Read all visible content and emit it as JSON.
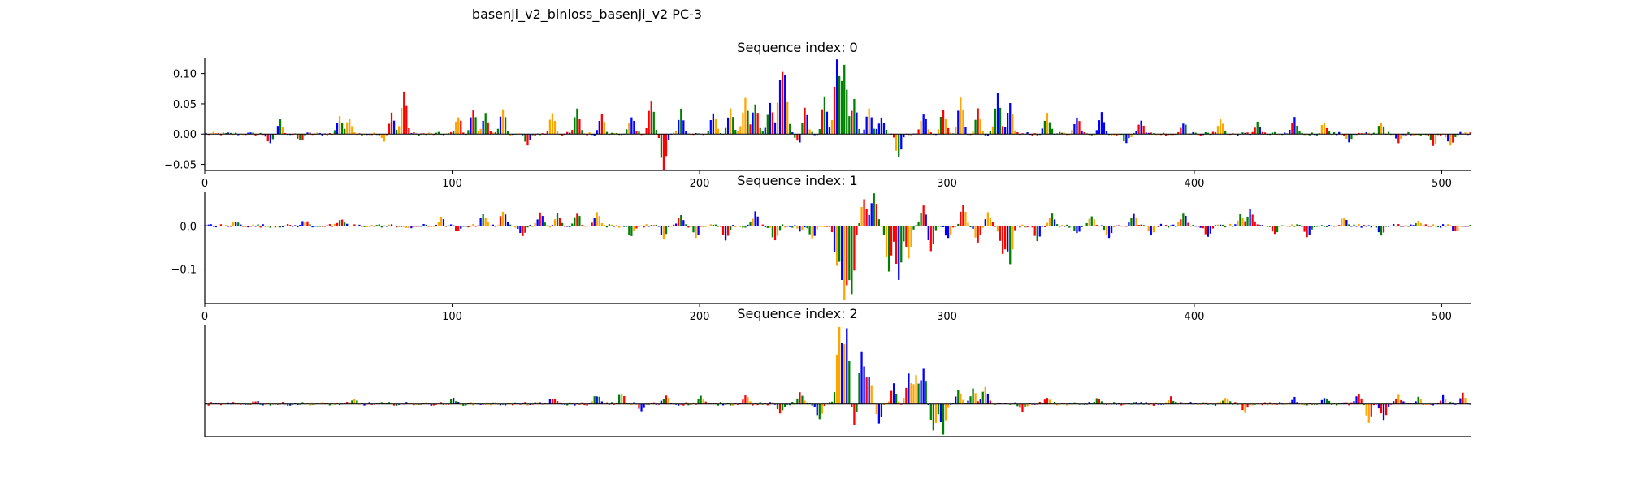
{
  "figure_title": "basenji_v2_binloss_basenji_v2 PC-3",
  "colors": {
    "A": "#008000",
    "C": "#0000ff",
    "G": "#ffa500",
    "T": "#ff0000"
  },
  "chart_data": [
    {
      "type": "sequence-logo",
      "title": "Sequence index: 0",
      "xlim": [
        0,
        512
      ],
      "ylim": [
        -0.06,
        0.125
      ],
      "x_ticks": [
        "0",
        "100",
        "200",
        "300",
        "400",
        "500"
      ],
      "y_ticks": [
        "0.10",
        "0.05",
        "0.00",
        "−0.05"
      ],
      "y_tick_values": [
        0.1,
        0.05,
        0.0,
        -0.05
      ],
      "peaks": [
        {
          "x": 26,
          "v": -0.018
        },
        {
          "x": 30,
          "v": 0.022
        },
        {
          "x": 38,
          "v": -0.012
        },
        {
          "x": 54,
          "v": 0.03
        },
        {
          "x": 58,
          "v": 0.025
        },
        {
          "x": 72,
          "v": -0.014
        },
        {
          "x": 75,
          "v": 0.035
        },
        {
          "x": 80,
          "v": 0.07
        },
        {
          "x": 102,
          "v": 0.03
        },
        {
          "x": 108,
          "v": 0.04
        },
        {
          "x": 113,
          "v": 0.035
        },
        {
          "x": 120,
          "v": 0.04
        },
        {
          "x": 130,
          "v": -0.02
        },
        {
          "x": 140,
          "v": 0.035
        },
        {
          "x": 150,
          "v": 0.04
        },
        {
          "x": 160,
          "v": 0.035
        },
        {
          "x": 172,
          "v": 0.03
        },
        {
          "x": 180,
          "v": 0.055
        },
        {
          "x": 185,
          "v": -0.06
        },
        {
          "x": 192,
          "v": 0.04
        },
        {
          "x": 205,
          "v": 0.035
        },
        {
          "x": 212,
          "v": 0.045
        },
        {
          "x": 218,
          "v": 0.06
        },
        {
          "x": 222,
          "v": 0.05
        },
        {
          "x": 228,
          "v": 0.05
        },
        {
          "x": 232,
          "v": 0.075
        },
        {
          "x": 234,
          "v": 0.085
        },
        {
          "x": 240,
          "v": -0.02
        },
        {
          "x": 242,
          "v": 0.045
        },
        {
          "x": 250,
          "v": 0.06
        },
        {
          "x": 255,
          "v": 0.12
        },
        {
          "x": 258,
          "v": 0.11
        },
        {
          "x": 262,
          "v": 0.06
        },
        {
          "x": 268,
          "v": 0.045
        },
        {
          "x": 273,
          "v": 0.03
        },
        {
          "x": 280,
          "v": -0.04
        },
        {
          "x": 290,
          "v": 0.035
        },
        {
          "x": 298,
          "v": 0.04
        },
        {
          "x": 305,
          "v": 0.06
        },
        {
          "x": 312,
          "v": 0.04
        },
        {
          "x": 320,
          "v": 0.065
        },
        {
          "x": 325,
          "v": 0.05
        },
        {
          "x": 340,
          "v": 0.035
        },
        {
          "x": 352,
          "v": 0.03
        },
        {
          "x": 362,
          "v": 0.035
        },
        {
          "x": 372,
          "v": -0.015
        },
        {
          "x": 378,
          "v": 0.025
        },
        {
          "x": 395,
          "v": 0.02
        },
        {
          "x": 410,
          "v": 0.025
        },
        {
          "x": 425,
          "v": 0.02
        },
        {
          "x": 440,
          "v": 0.025
        },
        {
          "x": 452,
          "v": 0.02
        },
        {
          "x": 462,
          "v": -0.012
        },
        {
          "x": 475,
          "v": 0.02
        },
        {
          "x": 482,
          "v": -0.015
        },
        {
          "x": 496,
          "v": -0.02
        },
        {
          "x": 503,
          "v": -0.018
        }
      ]
    },
    {
      "type": "sequence-logo",
      "title": "Sequence index: 1",
      "xlim": [
        0,
        512
      ],
      "ylim": [
        -0.18,
        0.08
      ],
      "x_ticks": [
        "0",
        "100",
        "200",
        "300",
        "400",
        "500"
      ],
      "y_ticks": [
        "0.0",
        "−0.1"
      ],
      "y_tick_values": [
        0.0,
        -0.1
      ],
      "peaks": [
        {
          "x": 12,
          "v": 0.01
        },
        {
          "x": 40,
          "v": 0.012
        },
        {
          "x": 55,
          "v": 0.015
        },
        {
          "x": 82,
          "v": -0.01
        },
        {
          "x": 95,
          "v": 0.018
        },
        {
          "x": 102,
          "v": -0.015
        },
        {
          "x": 112,
          "v": 0.03
        },
        {
          "x": 120,
          "v": 0.035
        },
        {
          "x": 128,
          "v": -0.02
        },
        {
          "x": 135,
          "v": 0.03
        },
        {
          "x": 142,
          "v": 0.025
        },
        {
          "x": 150,
          "v": 0.03
        },
        {
          "x": 158,
          "v": 0.035
        },
        {
          "x": 172,
          "v": -0.025
        },
        {
          "x": 185,
          "v": -0.03
        },
        {
          "x": 192,
          "v": 0.025
        },
        {
          "x": 198,
          "v": -0.03
        },
        {
          "x": 210,
          "v": -0.03
        },
        {
          "x": 222,
          "v": 0.03
        },
        {
          "x": 230,
          "v": -0.035
        },
        {
          "x": 240,
          "v": -0.015
        },
        {
          "x": 245,
          "v": -0.03
        },
        {
          "x": 255,
          "v": -0.09
        },
        {
          "x": 258,
          "v": -0.17
        },
        {
          "x": 261,
          "v": -0.16
        },
        {
          "x": 266,
          "v": 0.065
        },
        {
          "x": 270,
          "v": 0.075
        },
        {
          "x": 276,
          "v": -0.11
        },
        {
          "x": 280,
          "v": -0.13
        },
        {
          "x": 284,
          "v": -0.08
        },
        {
          "x": 290,
          "v": 0.05
        },
        {
          "x": 293,
          "v": -0.06
        },
        {
          "x": 300,
          "v": -0.03
        },
        {
          "x": 306,
          "v": 0.05
        },
        {
          "x": 312,
          "v": -0.04
        },
        {
          "x": 316,
          "v": 0.03
        },
        {
          "x": 322,
          "v": -0.06
        },
        {
          "x": 325,
          "v": -0.085
        },
        {
          "x": 336,
          "v": -0.035
        },
        {
          "x": 342,
          "v": 0.025
        },
        {
          "x": 352,
          "v": -0.02
        },
        {
          "x": 358,
          "v": 0.02
        },
        {
          "x": 365,
          "v": -0.03
        },
        {
          "x": 375,
          "v": 0.025
        },
        {
          "x": 382,
          "v": -0.02
        },
        {
          "x": 395,
          "v": 0.03
        },
        {
          "x": 405,
          "v": -0.025
        },
        {
          "x": 418,
          "v": 0.025
        },
        {
          "x": 422,
          "v": 0.035
        },
        {
          "x": 432,
          "v": -0.02
        },
        {
          "x": 445,
          "v": -0.025
        },
        {
          "x": 460,
          "v": 0.02
        },
        {
          "x": 475,
          "v": -0.02
        },
        {
          "x": 490,
          "v": 0.015
        },
        {
          "x": 505,
          "v": -0.015
        }
      ]
    },
    {
      "type": "sequence-logo",
      "title": "Sequence index: 2",
      "xlim": [
        0,
        512
      ],
      "ylim": [
        -0.035,
        0.085
      ],
      "x_ticks": [],
      "y_ticks": [],
      "y_tick_values": [],
      "peaks": [
        {
          "x": 20,
          "v": 0.003
        },
        {
          "x": 60,
          "v": 0.004
        },
        {
          "x": 100,
          "v": 0.005
        },
        {
          "x": 140,
          "v": 0.007
        },
        {
          "x": 158,
          "v": 0.01
        },
        {
          "x": 168,
          "v": 0.012
        },
        {
          "x": 176,
          "v": -0.008
        },
        {
          "x": 186,
          "v": 0.01
        },
        {
          "x": 200,
          "v": 0.008
        },
        {
          "x": 218,
          "v": 0.01
        },
        {
          "x": 232,
          "v": -0.01
        },
        {
          "x": 240,
          "v": 0.012
        },
        {
          "x": 248,
          "v": -0.018
        },
        {
          "x": 256,
          "v": 0.08
        },
        {
          "x": 259,
          "v": 0.08
        },
        {
          "x": 262,
          "v": -0.025
        },
        {
          "x": 265,
          "v": 0.055
        },
        {
          "x": 268,
          "v": 0.03
        },
        {
          "x": 272,
          "v": -0.02
        },
        {
          "x": 278,
          "v": 0.02
        },
        {
          "x": 284,
          "v": 0.03
        },
        {
          "x": 287,
          "v": 0.028
        },
        {
          "x": 290,
          "v": 0.035
        },
        {
          "x": 294,
          "v": -0.03
        },
        {
          "x": 298,
          "v": -0.032
        },
        {
          "x": 304,
          "v": 0.015
        },
        {
          "x": 310,
          "v": 0.015
        },
        {
          "x": 315,
          "v": 0.02
        },
        {
          "x": 330,
          "v": -0.008
        },
        {
          "x": 340,
          "v": 0.008
        },
        {
          "x": 360,
          "v": 0.006
        },
        {
          "x": 390,
          "v": 0.006
        },
        {
          "x": 412,
          "v": 0.006
        },
        {
          "x": 420,
          "v": -0.008
        },
        {
          "x": 440,
          "v": 0.006
        },
        {
          "x": 452,
          "v": 0.008
        },
        {
          "x": 466,
          "v": 0.01
        },
        {
          "x": 470,
          "v": -0.02
        },
        {
          "x": 476,
          "v": -0.018
        },
        {
          "x": 482,
          "v": 0.009
        },
        {
          "x": 490,
          "v": 0.006
        },
        {
          "x": 500,
          "v": 0.008
        },
        {
          "x": 508,
          "v": 0.01
        }
      ]
    }
  ]
}
